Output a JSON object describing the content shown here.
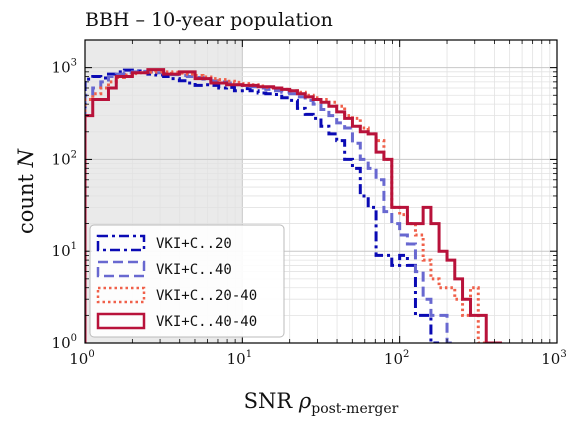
{
  "chart_data": {
    "type": "line",
    "title": "BBH – 10-year population",
    "xlabel": "SNR",
    "xlabel_symbol": "ρ",
    "xlabel_subscript": "post-merger",
    "ylabel": "count",
    "ylabel_symbol": "N",
    "xscale": "log",
    "yscale": "log",
    "xlim": [
      1,
      1000
    ],
    "ylim": [
      1,
      2000
    ],
    "grid": true,
    "legend_position": "lower-left",
    "shaded_region": {
      "x": [
        1,
        10
      ],
      "color": "#dcdcdc"
    },
    "x_ticks": [
      {
        "base": "10",
        "exp": "0"
      },
      {
        "base": "10",
        "exp": "1"
      },
      {
        "base": "10",
        "exp": "2"
      },
      {
        "base": "10",
        "exp": "3"
      }
    ],
    "y_ticks": [
      {
        "base": "10",
        "exp": "0"
      },
      {
        "base": "10",
        "exp": "1"
      },
      {
        "base": "10",
        "exp": "2"
      },
      {
        "base": "10",
        "exp": "3"
      }
    ],
    "series": [
      {
        "name": "VKI+C..20",
        "color": "#0a0ab4",
        "dash": "dashdot",
        "edges": [
          1,
          1.12,
          1.26,
          1.41,
          1.58,
          1.78,
          2,
          2.24,
          2.51,
          2.82,
          3.16,
          3.55,
          3.98,
          4.47,
          5.01,
          5.62,
          6.31,
          7.08,
          7.94,
          8.91,
          10,
          11.2,
          12.6,
          14.1,
          15.8,
          17.8,
          20,
          22.4,
          25.1,
          28.2,
          31.6,
          35.5,
          39.8,
          44.7,
          50.1,
          56.2,
          63.1,
          70.8,
          79.4,
          89.1,
          100,
          112,
          126,
          141,
          158,
          178
        ],
        "values": [
          750,
          800,
          770,
          850,
          900,
          940,
          920,
          900,
          850,
          830,
          800,
          760,
          720,
          680,
          640,
          650,
          640,
          600,
          610,
          560,
          590,
          560,
          530,
          520,
          510,
          470,
          440,
          360,
          310,
          280,
          230,
          190,
          160,
          100,
          80,
          40,
          30,
          9,
          9,
          7,
          9,
          7,
          2,
          2,
          1
        ]
      },
      {
        "name": "VKI+C..40",
        "color": "#6868d0",
        "dash": "dashed",
        "edges": [
          1,
          1.12,
          1.26,
          1.41,
          1.58,
          1.78,
          2,
          2.24,
          2.51,
          2.82,
          3.16,
          3.55,
          3.98,
          4.47,
          5.01,
          5.62,
          6.31,
          7.08,
          7.94,
          8.91,
          10,
          11.2,
          12.6,
          14.1,
          15.8,
          17.8,
          20,
          22.4,
          25.1,
          28.2,
          31.6,
          35.5,
          39.8,
          44.7,
          50.1,
          56.2,
          63.1,
          70.8,
          79.4,
          89.1,
          100,
          112,
          126,
          141,
          158,
          178,
          200,
          224
        ],
        "values": [
          500,
          600,
          700,
          800,
          850,
          880,
          900,
          910,
          900,
          880,
          860,
          840,
          820,
          800,
          780,
          750,
          720,
          700,
          680,
          650,
          640,
          620,
          600,
          580,
          560,
          540,
          520,
          480,
          440,
          400,
          350,
          300,
          250,
          220,
          150,
          100,
          80,
          60,
          27,
          20,
          15,
          12,
          6,
          3,
          2,
          2,
          1
        ]
      },
      {
        "name": "VKI+C..20-40",
        "color": "#f0604a",
        "dash": "dotted",
        "edges": [
          1,
          1.12,
          1.26,
          1.41,
          1.58,
          1.78,
          2,
          2.24,
          2.51,
          2.82,
          3.16,
          3.55,
          3.98,
          4.47,
          5.01,
          5.62,
          6.31,
          7.08,
          7.94,
          8.91,
          10,
          11.2,
          12.6,
          14.1,
          15.8,
          17.8,
          20,
          22.4,
          25.1,
          28.2,
          31.6,
          35.5,
          39.8,
          44.7,
          50.1,
          56.2,
          63.1,
          70.8,
          79.4,
          89.1,
          100,
          112,
          126,
          141,
          158,
          178,
          200,
          224,
          251,
          282,
          316,
          355
        ],
        "values": [
          450,
          520,
          600,
          700,
          780,
          830,
          860,
          880,
          890,
          900,
          900,
          890,
          870,
          850,
          820,
          790,
          760,
          740,
          710,
          690,
          670,
          650,
          630,
          610,
          600,
          580,
          560,
          540,
          500,
          470,
          450,
          420,
          380,
          300,
          280,
          220,
          190,
          160,
          100,
          30,
          25,
          20,
          15,
          8,
          5,
          4,
          4,
          3,
          2,
          4,
          1
        ]
      },
      {
        "name": "VKI+C..40-40",
        "color": "#b8123a",
        "dash": "solid",
        "edges": [
          1,
          1.12,
          1.26,
          1.41,
          1.58,
          1.78,
          2,
          2.24,
          2.51,
          2.82,
          3.16,
          3.55,
          3.98,
          4.47,
          5.01,
          5.62,
          6.31,
          7.08,
          7.94,
          8.91,
          10,
          11.2,
          12.6,
          14.1,
          15.8,
          17.8,
          20,
          22.4,
          25.1,
          28.2,
          31.6,
          35.5,
          39.8,
          44.7,
          50.1,
          56.2,
          63.1,
          70.8,
          79.4,
          89.1,
          100,
          112,
          126,
          141,
          158,
          178,
          200,
          224,
          251,
          282,
          316,
          355,
          398,
          447
        ],
        "values": [
          300,
          450,
          450,
          600,
          800,
          800,
          880,
          880,
          950,
          950,
          850,
          850,
          900,
          900,
          760,
          760,
          680,
          680,
          650,
          650,
          640,
          640,
          620,
          620,
          600,
          580,
          560,
          520,
          480,
          450,
          420,
          380,
          330,
          280,
          230,
          200,
          190,
          120,
          100,
          30,
          30,
          20,
          20,
          30,
          20,
          10,
          8,
          5,
          3,
          2,
          2,
          1,
          1
        ]
      }
    ]
  }
}
